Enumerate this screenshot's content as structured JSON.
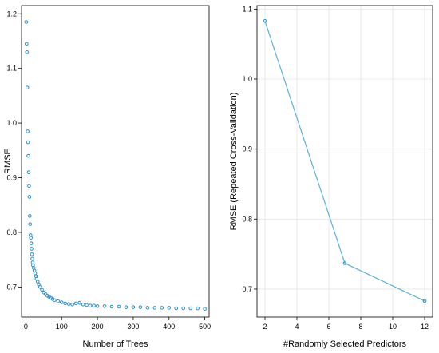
{
  "colors": {
    "series": "#2a8fce",
    "line": "#5fb0d6",
    "frame": "#000000",
    "grid": "#e6e6e6"
  },
  "chart_data": [
    {
      "type": "scatter",
      "xlabel": "Number of Trees",
      "ylabel": "RMSE",
      "xlim": [
        -12,
        512
      ],
      "ylim": [
        0.645,
        1.215
      ],
      "xticks": [
        0,
        100,
        200,
        300,
        400,
        500
      ],
      "yticks": [
        0.7,
        0.8,
        0.9,
        1.0,
        1.1,
        1.2
      ],
      "ytick_labels": [
        "0.7",
        "0.8",
        "0.9",
        "1.0",
        "1.1",
        "1.2"
      ],
      "grid": false,
      "series": [
        {
          "marker": "open-circle",
          "x": [
            1,
            2,
            3,
            4,
            5,
            6,
            7,
            8,
            9,
            10,
            11,
            12,
            13,
            14,
            15,
            16,
            17,
            18,
            19,
            20,
            22,
            24,
            26,
            28,
            30,
            33,
            36,
            40,
            45,
            50,
            55,
            60,
            65,
            70,
            75,
            80,
            90,
            100,
            110,
            120,
            130,
            140,
            150,
            160,
            170,
            180,
            190,
            200,
            220,
            240,
            260,
            280,
            300,
            320,
            340,
            360,
            380,
            400,
            420,
            440,
            460,
            480,
            500
          ],
          "y": [
            1.185,
            1.145,
            1.13,
            1.065,
            0.985,
            0.965,
            0.94,
            0.91,
            0.885,
            0.865,
            0.83,
            0.815,
            0.795,
            0.79,
            0.78,
            0.77,
            0.76,
            0.752,
            0.745,
            0.74,
            0.735,
            0.73,
            0.725,
            0.72,
            0.715,
            0.71,
            0.705,
            0.7,
            0.695,
            0.69,
            0.687,
            0.684,
            0.682,
            0.68,
            0.678,
            0.676,
            0.674,
            0.672,
            0.67,
            0.669,
            0.668,
            0.67,
            0.671,
            0.668,
            0.667,
            0.666,
            0.666,
            0.665,
            0.665,
            0.664,
            0.664,
            0.663,
            0.663,
            0.663,
            0.662,
            0.662,
            0.662,
            0.662,
            0.661,
            0.661,
            0.661,
            0.661,
            0.66
          ]
        }
      ]
    },
    {
      "type": "line",
      "xlabel": "#Randomly Selected Predictors",
      "ylabel": "RMSE (Repeated Cross-Validation)",
      "xlim": [
        1.5,
        12.5
      ],
      "ylim": [
        0.66,
        1.105
      ],
      "xticks": [
        2,
        4,
        6,
        8,
        10,
        12
      ],
      "yticks": [
        0.7,
        0.8,
        0.9,
        1.0,
        1.1
      ],
      "ytick_labels": [
        "0.7",
        "0.8",
        "0.9",
        "1.0",
        "1.1"
      ],
      "grid": true,
      "series": [
        {
          "marker": "open-circle",
          "x": [
            2,
            7,
            12
          ],
          "y": [
            1.083,
            0.737,
            0.683
          ]
        }
      ]
    }
  ]
}
